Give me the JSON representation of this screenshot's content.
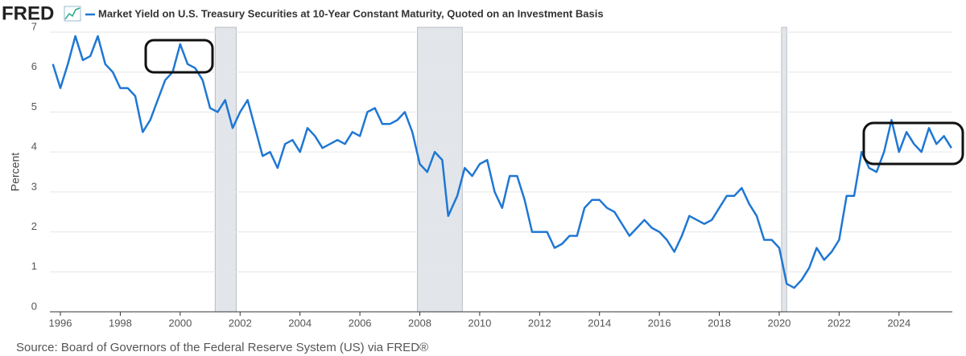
{
  "logo": "FRED",
  "chart_data": {
    "type": "line",
    "source": "Source: Board of Governors of the Federal Reserve System (US) via FRED®",
    "ylabel": "Percent",
    "x": [
      1995.75,
      1996.0,
      1996.25,
      1996.5,
      1996.75,
      1997.0,
      1997.25,
      1997.5,
      1997.75,
      1998.0,
      1998.25,
      1998.5,
      1998.75,
      1999.0,
      1999.25,
      1999.5,
      1999.75,
      2000.0,
      2000.25,
      2000.5,
      2000.75,
      2001.0,
      2001.25,
      2001.5,
      2001.75,
      2002.0,
      2002.25,
      2002.5,
      2002.75,
      2003.0,
      2003.25,
      2003.5,
      2003.75,
      2004.0,
      2004.25,
      2004.5,
      2004.75,
      2005.0,
      2005.25,
      2005.5,
      2005.75,
      2006.0,
      2006.25,
      2006.5,
      2006.75,
      2007.0,
      2007.25,
      2007.5,
      2007.75,
      2008.0,
      2008.25,
      2008.5,
      2008.75,
      2008.95,
      2009.25,
      2009.5,
      2009.75,
      2010.0,
      2010.25,
      2010.5,
      2010.75,
      2011.0,
      2011.25,
      2011.5,
      2011.75,
      2012.0,
      2012.25,
      2012.5,
      2012.75,
      2013.0,
      2013.25,
      2013.5,
      2013.75,
      2014.0,
      2014.25,
      2014.5,
      2014.75,
      2015.0,
      2015.25,
      2015.5,
      2015.75,
      2016.0,
      2016.25,
      2016.5,
      2016.75,
      2017.0,
      2017.25,
      2017.5,
      2017.75,
      2018.0,
      2018.25,
      2018.5,
      2018.75,
      2019.0,
      2019.25,
      2019.5,
      2019.75,
      2020.0,
      2020.25,
      2020.5,
      2020.75,
      2021.0,
      2021.25,
      2021.5,
      2021.75,
      2022.0,
      2022.25,
      2022.5,
      2022.75,
      2023.0,
      2023.25,
      2023.5,
      2023.75,
      2024.0,
      2024.25,
      2024.5,
      2024.75,
      2025.0,
      2025.25,
      2025.5,
      2025.75
    ],
    "series": [
      {
        "name": "Market Yield on U.S. Treasury Securities at 10-Year Constant Maturity, Quoted on an Investment Basis",
        "color": "#1f77d4",
        "values": [
          6.2,
          5.6,
          6.2,
          6.9,
          6.3,
          6.4,
          6.9,
          6.2,
          6.0,
          5.6,
          5.6,
          5.4,
          4.5,
          4.8,
          5.3,
          5.8,
          6.0,
          6.7,
          6.2,
          6.1,
          5.8,
          5.1,
          5.0,
          5.3,
          4.6,
          5.0,
          5.3,
          4.6,
          3.9,
          4.0,
          3.6,
          4.2,
          4.3,
          4.0,
          4.6,
          4.4,
          4.1,
          4.2,
          4.3,
          4.2,
          4.5,
          4.4,
          5.0,
          5.1,
          4.7,
          4.7,
          4.8,
          5.0,
          4.5,
          3.7,
          3.5,
          4.0,
          3.8,
          2.4,
          2.9,
          3.6,
          3.4,
          3.7,
          3.8,
          3.0,
          2.6,
          3.4,
          3.4,
          2.8,
          2.0,
          2.0,
          2.0,
          1.6,
          1.7,
          1.9,
          1.9,
          2.6,
          2.8,
          2.8,
          2.6,
          2.5,
          2.2,
          1.9,
          2.1,
          2.3,
          2.1,
          2.0,
          1.8,
          1.5,
          1.9,
          2.4,
          2.3,
          2.2,
          2.3,
          2.6,
          2.9,
          2.9,
          3.1,
          2.7,
          2.4,
          1.8,
          1.8,
          1.6,
          0.7,
          0.6,
          0.8,
          1.1,
          1.6,
          1.3,
          1.5,
          1.8,
          2.9,
          2.9,
          4.0,
          3.6,
          3.5,
          4.0,
          4.8,
          4.0,
          4.5,
          4.2,
          4.0,
          4.6,
          4.2,
          4.4,
          4.1
        ]
      }
    ],
    "recessions": [
      [
        2001.17,
        2001.87
      ],
      [
        2007.92,
        2009.42
      ],
      [
        2020.08,
        2020.25
      ]
    ],
    "xlim": [
      1995.65,
      2025.78
    ],
    "xticks": [
      1996,
      1998,
      2000,
      2002,
      2004,
      2006,
      2008,
      2010,
      2012,
      2014,
      2016,
      2018,
      2020,
      2022,
      2024
    ],
    "ylim": [
      0,
      7
    ],
    "yticks": [
      0,
      1,
      2,
      3,
      4,
      5,
      6,
      7
    ],
    "grid": true
  }
}
